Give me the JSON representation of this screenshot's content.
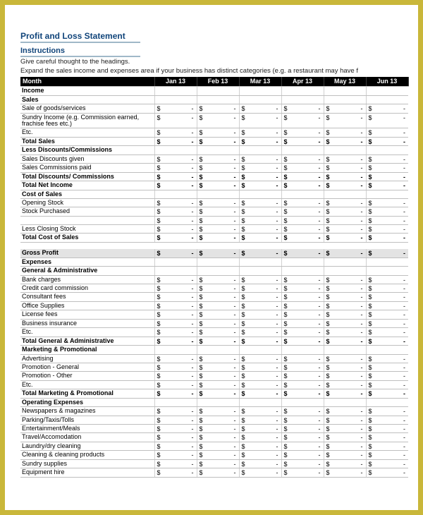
{
  "title": "Profit and Loss Statement",
  "instructions_heading": "Instructions",
  "instructions_lines": [
    "Give careful thought to the headings.",
    "Expand the sales income and expenses area if your business has distinct categories (e.g. a restaurant may have f"
  ],
  "header": {
    "label": "Month",
    "months": [
      "Jan 13",
      "Feb 13",
      "Mar 13",
      "Apr 13",
      "May 13",
      "Jun 13"
    ]
  },
  "dollar": "$",
  "dash": "-",
  "colors": {
    "frame_border": "#c9b73a",
    "title_color": "#10447a",
    "title_underline": "#a0b8c8",
    "header_bg": "#000000",
    "header_fg": "#ffffff",
    "grid": "#bfbfbf",
    "shade": "#e3e3e3",
    "background": "#ffffff"
  },
  "sections": {
    "income": "Income",
    "sales": "Sales",
    "sales_rows": [
      "Sale of goods/services",
      "Sundry Income (e.g. Commission earned, frachise fees etc.)",
      "Etc."
    ],
    "total_sales": "Total Sales",
    "less_disc": "Less Discounts/Commissions",
    "disc_rows": [
      "Sales Discounts given",
      "Sales Commissions paid"
    ],
    "total_disc": "Total Discounts/ Commissions",
    "total_net": "Total Net Income",
    "cos": "Cost of Sales",
    "cos_rows": [
      "Opening Stock",
      "Stock Purchased",
      " ",
      "Less Closing Stock"
    ],
    "total_cos": "Total Cost of Sales",
    "gross_profit": "Gross Profit",
    "expenses": "Expenses",
    "ga": "General & Administrative",
    "ga_rows": [
      "Bank charges",
      "Credit card commission",
      "Consultant fees",
      "Office Supplies",
      "License fees",
      "Business insurance",
      "Etc."
    ],
    "total_ga": "Total General & Administrative",
    "mp": "Marketing & Promotional",
    "mp_rows": [
      "Advertising",
      "Promotion - General",
      "Promotion - Other",
      "Etc."
    ],
    "total_mp": "Total Marketing & Promotional",
    "opex": "Operating Expenses",
    "opex_rows": [
      "Newspapers & magazines",
      "Parking/Taxis/Tolls",
      "Entertainment/Meals",
      "Travel/Accomodation",
      "Laundry/dry cleaning",
      "Cleaning & cleaning products",
      "Sundry supplies",
      "Equipment hire"
    ]
  }
}
